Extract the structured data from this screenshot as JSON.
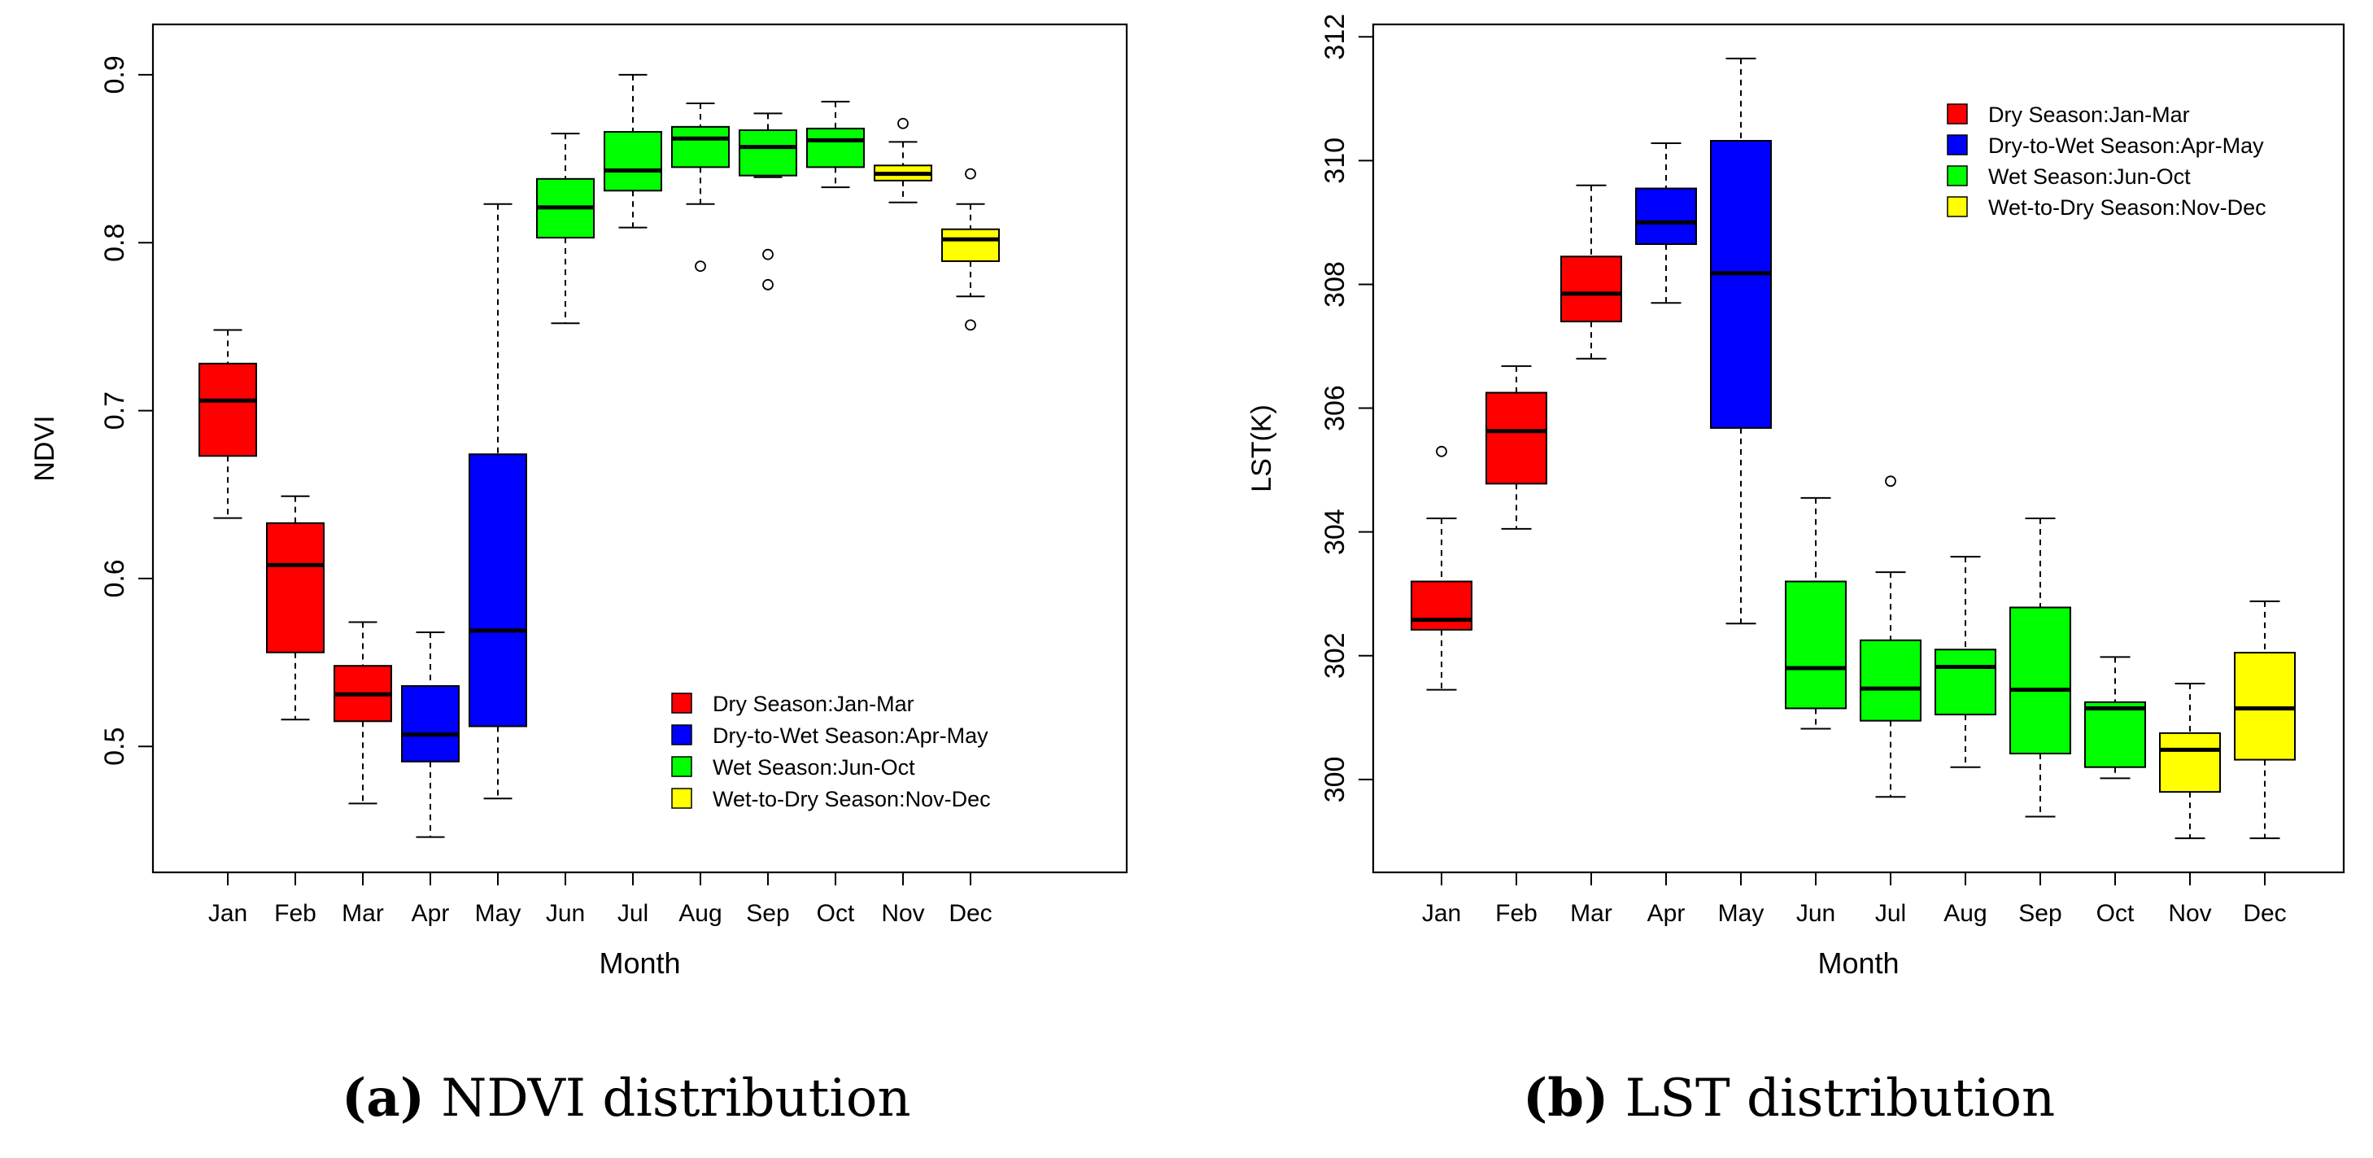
{
  "captions": [
    {
      "label": "(a)",
      "text": "NDVI distribution"
    },
    {
      "label": "(b)",
      "text": "LST distribution"
    }
  ],
  "chart_data": [
    {
      "type": "boxplot",
      "xlabel": "Month",
      "ylabel": "NDVI",
      "ylim": [
        0.425,
        0.93
      ],
      "yticks": [
        0.5,
        0.6,
        0.7,
        0.8,
        0.9
      ],
      "ytick_labels": [
        "0.5",
        "0.6",
        "0.7",
        "0.8",
        "0.9"
      ],
      "grid": false,
      "legend_position": "bottom-right",
      "categories": [
        "Jan",
        "Feb",
        "Mar",
        "Apr",
        "May",
        "Jun",
        "Jul",
        "Aug",
        "Sep",
        "Oct",
        "Nov",
        "Dec"
      ],
      "legend": [
        {
          "label": "Dry Season:Jan-Mar",
          "color": "#ff0000"
        },
        {
          "label": "Dry-to-Wet Season:Apr-May",
          "color": "#0000ff"
        },
        {
          "label": "Wet Season:Jun-Oct",
          "color": "#00ff00"
        },
        {
          "label": "Wet-to-Dry Season:Nov-Dec",
          "color": "#ffff00"
        }
      ],
      "season_index": [
        0,
        0,
        0,
        1,
        1,
        2,
        2,
        2,
        2,
        2,
        3,
        3
      ],
      "boxes": [
        {
          "min": 0.636,
          "q1": 0.673,
          "median": 0.706,
          "q3": 0.728,
          "max": 0.748,
          "outliers": []
        },
        {
          "min": 0.516,
          "q1": 0.556,
          "median": 0.608,
          "q3": 0.633,
          "max": 0.649,
          "outliers": []
        },
        {
          "min": 0.466,
          "q1": 0.515,
          "median": 0.531,
          "q3": 0.548,
          "max": 0.574,
          "outliers": []
        },
        {
          "min": 0.446,
          "q1": 0.491,
          "median": 0.507,
          "q3": 0.536,
          "max": 0.568,
          "outliers": []
        },
        {
          "min": 0.469,
          "q1": 0.512,
          "median": 0.569,
          "q3": 0.674,
          "max": 0.823,
          "outliers": []
        },
        {
          "min": 0.752,
          "q1": 0.803,
          "median": 0.821,
          "q3": 0.838,
          "max": 0.865,
          "outliers": []
        },
        {
          "min": 0.809,
          "q1": 0.831,
          "median": 0.843,
          "q3": 0.866,
          "max": 0.9,
          "outliers": []
        },
        {
          "min": 0.823,
          "q1": 0.845,
          "median": 0.862,
          "q3": 0.869,
          "max": 0.883,
          "outliers": [
            0.786
          ]
        },
        {
          "min": 0.839,
          "q1": 0.84,
          "median": 0.857,
          "q3": 0.867,
          "max": 0.877,
          "outliers": [
            0.793,
            0.775
          ]
        },
        {
          "min": 0.833,
          "q1": 0.845,
          "median": 0.861,
          "q3": 0.868,
          "max": 0.884,
          "outliers": []
        },
        {
          "min": 0.824,
          "q1": 0.837,
          "median": 0.841,
          "q3": 0.846,
          "max": 0.86,
          "outliers": [
            0.871
          ]
        },
        {
          "min": 0.768,
          "q1": 0.789,
          "median": 0.802,
          "q3": 0.808,
          "max": 0.823,
          "outliers": [
            0.841,
            0.751
          ]
        }
      ]
    },
    {
      "type": "boxplot",
      "xlabel": "Month",
      "ylabel": "LST(K)",
      "ylim": [
        298.5,
        312.2
      ],
      "yticks": [
        300,
        302,
        304,
        306,
        308,
        310,
        312
      ],
      "ytick_labels": [
        "300",
        "302",
        "304",
        "306",
        "308",
        "310",
        "312"
      ],
      "grid": false,
      "legend_position": "top-right",
      "categories": [
        "Jan",
        "Feb",
        "Mar",
        "Apr",
        "May",
        "Jun",
        "Jul",
        "Aug",
        "Sep",
        "Oct",
        "Nov",
        "Dec"
      ],
      "legend": [
        {
          "label": "Dry Season:Jan-Mar",
          "color": "#ff0000"
        },
        {
          "label": "Dry-to-Wet Season:Apr-May",
          "color": "#0000ff"
        },
        {
          "label": "Wet Season:Jun-Oct",
          "color": "#00ff00"
        },
        {
          "label": "Wet-to-Dry Season:Nov-Dec",
          "color": "#ffff00"
        }
      ],
      "season_index": [
        0,
        0,
        0,
        1,
        1,
        2,
        2,
        2,
        2,
        2,
        3,
        3
      ],
      "boxes": [
        {
          "min": 301.45,
          "q1": 302.42,
          "median": 302.58,
          "q3": 303.2,
          "max": 304.22,
          "outliers": [
            305.3
          ]
        },
        {
          "min": 304.05,
          "q1": 304.78,
          "median": 305.63,
          "q3": 306.25,
          "max": 306.68,
          "outliers": []
        },
        {
          "min": 306.8,
          "q1": 307.4,
          "median": 307.85,
          "q3": 308.45,
          "max": 309.6,
          "outliers": []
        },
        {
          "min": 307.7,
          "q1": 308.65,
          "median": 309.0,
          "q3": 309.55,
          "max": 310.28,
          "outliers": []
        },
        {
          "min": 302.52,
          "q1": 305.68,
          "median": 308.18,
          "q3": 310.32,
          "max": 311.65,
          "outliers": []
        },
        {
          "min": 300.82,
          "q1": 301.15,
          "median": 301.8,
          "q3": 303.2,
          "max": 304.55,
          "outliers": []
        },
        {
          "min": 299.72,
          "q1": 300.95,
          "median": 301.47,
          "q3": 302.25,
          "max": 303.35,
          "outliers": [
            304.82
          ]
        },
        {
          "min": 300.2,
          "q1": 301.05,
          "median": 301.82,
          "q3": 302.1,
          "max": 303.6,
          "outliers": []
        },
        {
          "min": 299.4,
          "q1": 300.42,
          "median": 301.45,
          "q3": 302.78,
          "max": 304.22,
          "outliers": []
        },
        {
          "min": 300.02,
          "q1": 300.2,
          "median": 301.15,
          "q3": 301.25,
          "max": 301.98,
          "outliers": []
        },
        {
          "min": 299.05,
          "q1": 299.8,
          "median": 300.48,
          "q3": 300.75,
          "max": 301.55,
          "outliers": []
        },
        {
          "min": 299.05,
          "q1": 300.32,
          "median": 301.15,
          "q3": 302.05,
          "max": 302.88,
          "outliers": []
        }
      ]
    }
  ]
}
